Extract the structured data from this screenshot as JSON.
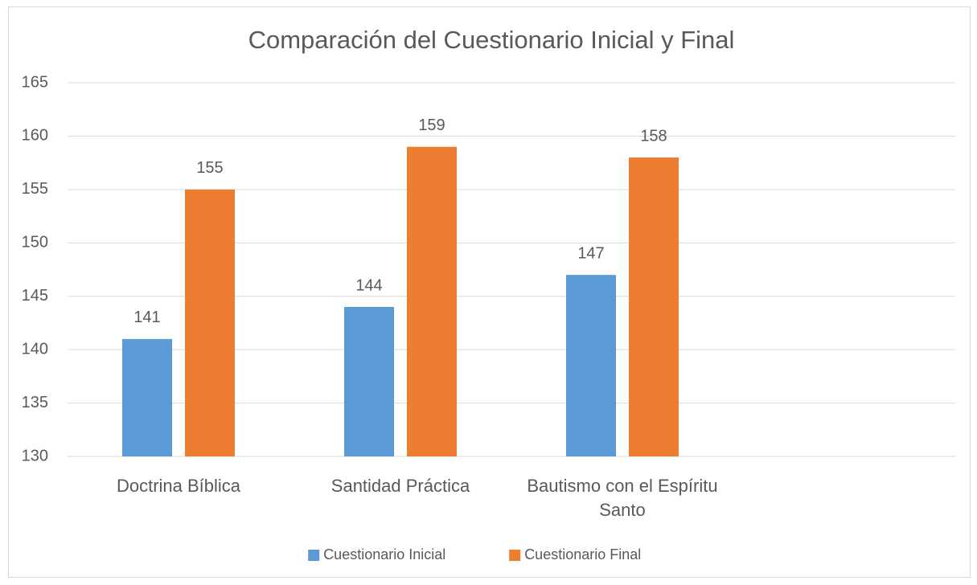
{
  "chart_data": {
    "type": "bar",
    "title": "Comparación del Cuestionario Inicial y Final",
    "categories": [
      "Doctrina Bíblica",
      "Santidad Práctica",
      "Bautismo con el Espíritu Santo",
      null
    ],
    "series": [
      {
        "name": "Cuestionario Inicial",
        "color": "#5b9bd5",
        "values": [
          141,
          144,
          147,
          null
        ]
      },
      {
        "name": "Cuestionario Final",
        "color": "#ed7d31",
        "values": [
          155,
          159,
          158,
          null
        ]
      }
    ],
    "ylim": [
      130,
      165
    ],
    "yticks": [
      130,
      135,
      140,
      145,
      150,
      155,
      160,
      165
    ],
    "grid": true,
    "legend": "bottom"
  }
}
